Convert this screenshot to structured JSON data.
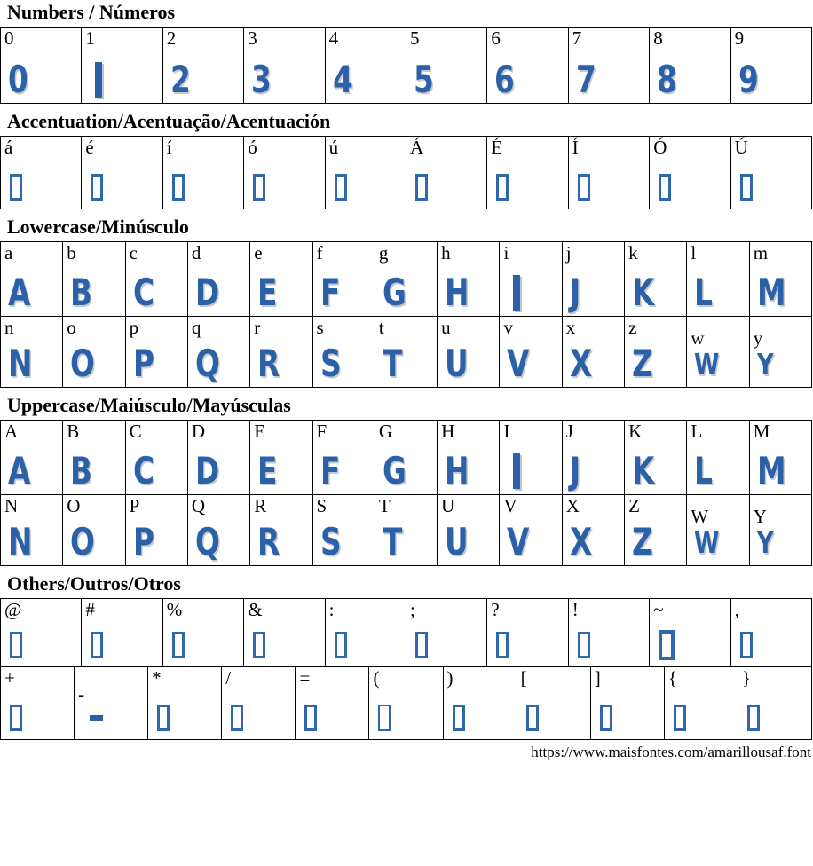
{
  "page": {
    "footer_url": "https://www.maisfontes.com/amarillousaf.font",
    "accent_color": "#2b61a8",
    "tofu_border_color": "#2f68ae",
    "table_border_color": "#000000"
  },
  "sections": [
    {
      "id": "numbers",
      "title": "Numbers / Números",
      "rows": [
        [
          {
            "label": "0",
            "glyph": "0",
            "type": "text"
          },
          {
            "label": "1",
            "type": "bar"
          },
          {
            "label": "2",
            "glyph": "2",
            "type": "text"
          },
          {
            "label": "3",
            "glyph": "3",
            "type": "text"
          },
          {
            "label": "4",
            "glyph": "4",
            "type": "text"
          },
          {
            "label": "5",
            "glyph": "5",
            "type": "text"
          },
          {
            "label": "6",
            "glyph": "6",
            "type": "text"
          },
          {
            "label": "7",
            "glyph": "7",
            "type": "text"
          },
          {
            "label": "8",
            "glyph": "8",
            "type": "text"
          },
          {
            "label": "9",
            "glyph": "9",
            "type": "text"
          }
        ]
      ]
    },
    {
      "id": "accentuation",
      "title": "Accentuation/Acentuação/Acentuación",
      "rows": [
        [
          {
            "label": "á",
            "type": "tofu"
          },
          {
            "label": "é",
            "type": "tofu"
          },
          {
            "label": "í",
            "type": "tofu"
          },
          {
            "label": "ó",
            "type": "tofu"
          },
          {
            "label": "ú",
            "type": "tofu"
          },
          {
            "label": "Á",
            "type": "tofu"
          },
          {
            "label": "É",
            "type": "tofu"
          },
          {
            "label": "Í",
            "type": "tofu"
          },
          {
            "label": "Ó",
            "type": "tofu"
          },
          {
            "label": "Ú",
            "type": "tofu"
          }
        ]
      ]
    },
    {
      "id": "lowercase",
      "title": "Lowercase/Minúsculo",
      "rows": [
        [
          {
            "label": "a",
            "glyph": "A",
            "type": "text"
          },
          {
            "label": "b",
            "glyph": "B",
            "type": "text"
          },
          {
            "label": "c",
            "glyph": "C",
            "type": "text"
          },
          {
            "label": "d",
            "glyph": "D",
            "type": "text"
          },
          {
            "label": "e",
            "glyph": "E",
            "type": "text"
          },
          {
            "label": "f",
            "glyph": "F",
            "type": "text"
          },
          {
            "label": "g",
            "glyph": "G",
            "type": "text"
          },
          {
            "label": "h",
            "glyph": "H",
            "type": "text"
          },
          {
            "label": "i",
            "type": "bar"
          },
          {
            "label": "j",
            "glyph": "J",
            "type": "text"
          },
          {
            "label": "k",
            "glyph": "K",
            "type": "text"
          },
          {
            "label": "l",
            "glyph": "L",
            "type": "text"
          },
          {
            "label": "m",
            "glyph": "M",
            "type": "text"
          }
        ],
        [
          {
            "label": "n",
            "glyph": "N",
            "type": "text"
          },
          {
            "label": "o",
            "glyph": "O",
            "type": "text"
          },
          {
            "label": "p",
            "glyph": "P",
            "type": "text"
          },
          {
            "label": "q",
            "glyph": "Q",
            "type": "text"
          },
          {
            "label": "r",
            "glyph": "R",
            "type": "text"
          },
          {
            "label": "s",
            "glyph": "S",
            "type": "text"
          },
          {
            "label": "t",
            "glyph": "T",
            "type": "text"
          },
          {
            "label": "u",
            "glyph": "U",
            "type": "text"
          },
          {
            "label": "v",
            "glyph": "V",
            "type": "text"
          },
          {
            "label": "x",
            "glyph": "X",
            "type": "text"
          },
          {
            "label": "z",
            "glyph": "Z",
            "type": "text"
          },
          {
            "label": "w",
            "glyph": "W",
            "type": "text",
            "small": true,
            "label_pos": "low"
          },
          {
            "label": "y",
            "glyph": "Y",
            "type": "text",
            "small": true,
            "label_pos": "low"
          }
        ]
      ]
    },
    {
      "id": "uppercase",
      "title": "Uppercase/Maiúsculo/Mayúsculas",
      "rows": [
        [
          {
            "label": "A",
            "glyph": "A",
            "type": "text"
          },
          {
            "label": "B",
            "glyph": "B",
            "type": "text"
          },
          {
            "label": "C",
            "glyph": "C",
            "type": "text"
          },
          {
            "label": "D",
            "glyph": "D",
            "type": "text"
          },
          {
            "label": "E",
            "glyph": "E",
            "type": "text"
          },
          {
            "label": "F",
            "glyph": "F",
            "type": "text"
          },
          {
            "label": "G",
            "glyph": "G",
            "type": "text"
          },
          {
            "label": "H",
            "glyph": "H",
            "type": "text"
          },
          {
            "label": "I",
            "type": "bar"
          },
          {
            "label": "J",
            "glyph": "J",
            "type": "text"
          },
          {
            "label": "K",
            "glyph": "K",
            "type": "text"
          },
          {
            "label": "L",
            "glyph": "L",
            "type": "text"
          },
          {
            "label": "M",
            "glyph": "M",
            "type": "text"
          }
        ],
        [
          {
            "label": "N",
            "glyph": "N",
            "type": "text"
          },
          {
            "label": "O",
            "glyph": "O",
            "type": "text"
          },
          {
            "label": "P",
            "glyph": "P",
            "type": "text"
          },
          {
            "label": "Q",
            "glyph": "Q",
            "type": "text"
          },
          {
            "label": "R",
            "glyph": "R",
            "type": "text"
          },
          {
            "label": "S",
            "glyph": "S",
            "type": "text"
          },
          {
            "label": "T",
            "glyph": "T",
            "type": "text"
          },
          {
            "label": "U",
            "glyph": "U",
            "type": "text"
          },
          {
            "label": "V",
            "glyph": "V",
            "type": "text"
          },
          {
            "label": "X",
            "glyph": "X",
            "type": "text"
          },
          {
            "label": "Z",
            "glyph": "Z",
            "type": "text"
          },
          {
            "label": "W",
            "glyph": "W",
            "type": "text",
            "small": true,
            "label_pos": "low"
          },
          {
            "label": "Y",
            "glyph": "Y",
            "type": "text",
            "small": true,
            "label_pos": "low"
          }
        ]
      ]
    },
    {
      "id": "others",
      "title": "Others/Outros/Otros",
      "rows": [
        [
          {
            "label": "@",
            "type": "tofu"
          },
          {
            "label": "#",
            "type": "tofu"
          },
          {
            "label": "%",
            "type": "tofu"
          },
          {
            "label": "&",
            "type": "tofu"
          },
          {
            "label": ":",
            "type": "tofu"
          },
          {
            "label": ";",
            "type": "tofu"
          },
          {
            "label": "?",
            "type": "tofu"
          },
          {
            "label": "!",
            "type": "tofu"
          },
          {
            "label": "~",
            "type": "tofu",
            "variant": "large"
          },
          {
            "label": ",",
            "type": "tofu"
          }
        ],
        [
          {
            "label": "+",
            "type": "tofu"
          },
          {
            "label": "-",
            "type": "dash",
            "label_pos": "lower"
          },
          {
            "label": "*",
            "type": "tofu"
          },
          {
            "label": "/",
            "type": "tofu"
          },
          {
            "label": "=",
            "type": "tofu"
          },
          {
            "label": "(",
            "type": "tofu",
            "variant": "thin"
          },
          {
            "label": ")",
            "type": "tofu"
          },
          {
            "label": "[",
            "type": "tofu"
          },
          {
            "label": "]",
            "type": "tofu"
          },
          {
            "label": "{",
            "type": "tofu"
          },
          {
            "label": "}",
            "type": "tofu"
          }
        ]
      ]
    }
  ]
}
